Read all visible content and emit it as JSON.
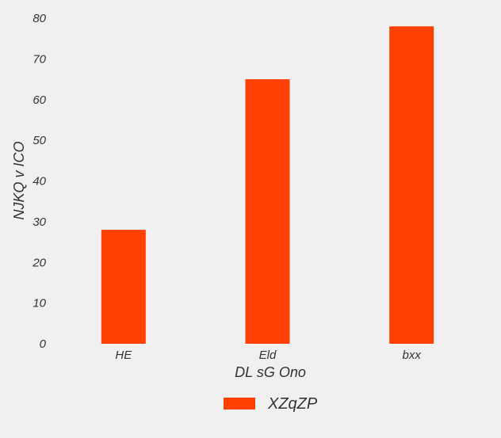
{
  "chart_data": {
    "type": "bar",
    "title": "",
    "xlabel": "DL sG Ono",
    "ylabel": "NJKQ v ICO",
    "categories": [
      "HE",
      "Eld",
      "bxx"
    ],
    "series": [
      {
        "name": "XZqZP",
        "values": [
          28,
          65,
          78
        ],
        "color": "#ff4000"
      }
    ],
    "ylim": [
      0,
      80
    ],
    "yticks": [
      0,
      10,
      20,
      30,
      40,
      50,
      60,
      70,
      80
    ],
    "grid": false,
    "legend": "bottom-center",
    "background": "#f0f0f0"
  }
}
